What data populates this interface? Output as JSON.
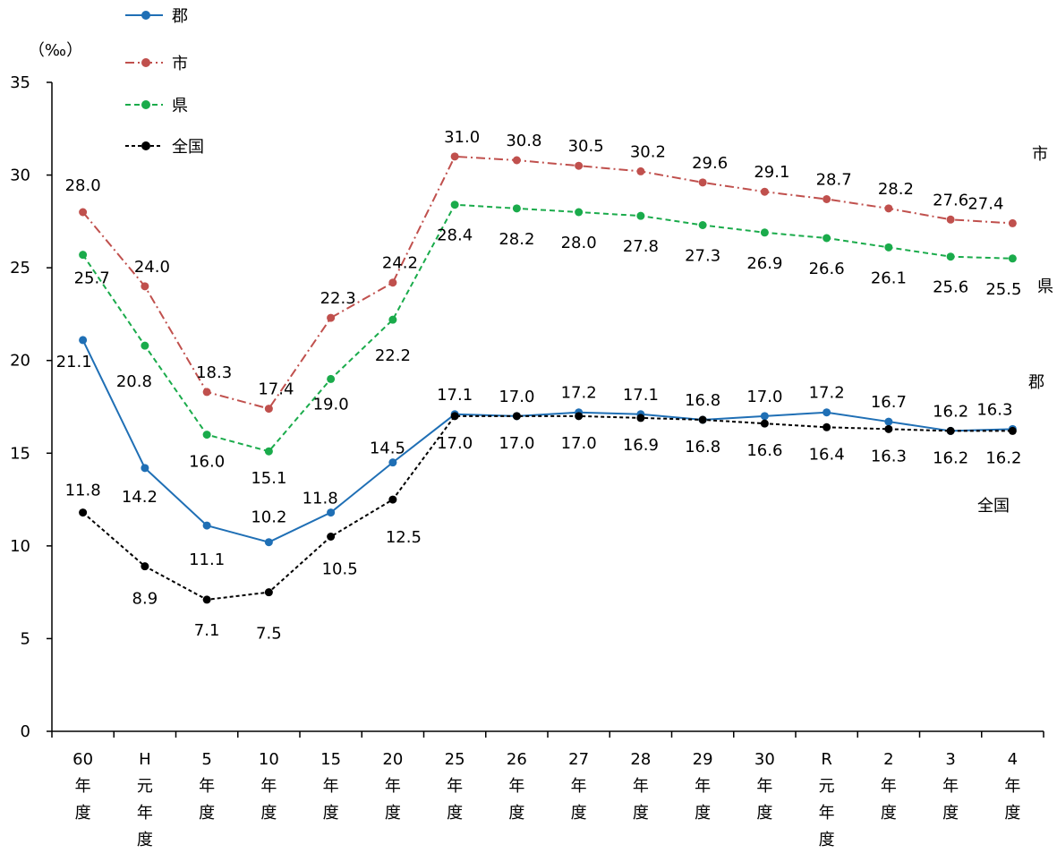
{
  "chart_data": {
    "type": "line",
    "unit_label": "（‰）",
    "ylim": [
      0,
      35
    ],
    "yticks": [
      0,
      5,
      10,
      15,
      20,
      25,
      30,
      35
    ],
    "grid": false,
    "legend_position": "top-left",
    "categories": [
      [
        "60",
        "年",
        "度"
      ],
      [
        "H",
        "元",
        "年",
        "度"
      ],
      [
        "5",
        "年",
        "度"
      ],
      [
        "10",
        "年",
        "度"
      ],
      [
        "15",
        "年",
        "度"
      ],
      [
        "20",
        "年",
        "度"
      ],
      [
        "25",
        "年",
        "度"
      ],
      [
        "26",
        "年",
        "度"
      ],
      [
        "27",
        "年",
        "度"
      ],
      [
        "28",
        "年",
        "度"
      ],
      [
        "29",
        "年",
        "度"
      ],
      [
        "30",
        "年",
        "度"
      ],
      [
        "R",
        "元",
        "年",
        "度"
      ],
      [
        "2",
        "年",
        "度"
      ],
      [
        "3",
        "年",
        "度"
      ],
      [
        "4",
        "年",
        "度"
      ]
    ],
    "series": [
      {
        "name": "郡",
        "color": "#1f6fb5",
        "style": "solid",
        "values": [
          21.1,
          14.2,
          11.1,
          10.2,
          11.8,
          14.5,
          17.1,
          17.0,
          17.2,
          17.1,
          16.8,
          17.0,
          17.2,
          16.7,
          16.2,
          16.3
        ],
        "labels": [
          "21.1",
          "14.2",
          "11.1",
          "10.2",
          "11.8",
          "14.5",
          "17.1",
          "17.0",
          "17.2",
          "17.1",
          "16.8",
          "17.0",
          "17.2",
          "16.7",
          "16.2",
          "16.3"
        ]
      },
      {
        "name": "市",
        "color": "#c0504d",
        "style": "dashdot",
        "values": [
          28.0,
          24.0,
          18.3,
          17.4,
          22.3,
          24.2,
          31.0,
          30.8,
          30.5,
          30.2,
          29.6,
          29.1,
          28.7,
          28.2,
          27.6,
          27.4
        ],
        "labels": [
          "28.0",
          "24.0",
          "18.3",
          "17.4",
          "22.3",
          "24.2",
          "31.0",
          "30.8",
          "30.5",
          "30.2",
          "29.6",
          "29.1",
          "28.7",
          "28.2",
          "27.6",
          "27.4"
        ]
      },
      {
        "name": "県",
        "color": "#1aab4b",
        "style": "dashed",
        "values": [
          25.7,
          20.8,
          16.0,
          15.1,
          19.0,
          22.2,
          28.4,
          28.2,
          28.0,
          27.8,
          27.3,
          26.9,
          26.6,
          26.1,
          25.6,
          25.5
        ],
        "labels": [
          "25.7",
          "20.8",
          "16.0",
          "15.1",
          "19.0",
          "22.2",
          "28.4",
          "28.2",
          "28.0",
          "27.8",
          "27.3",
          "26.9",
          "26.6",
          "26.1",
          "25.6",
          "25.5"
        ]
      },
      {
        "name": "全国",
        "color": "#000000",
        "style": "dotted",
        "values": [
          11.8,
          8.9,
          7.1,
          7.5,
          10.5,
          12.5,
          17.0,
          17.0,
          17.0,
          16.9,
          16.8,
          16.6,
          16.4,
          16.3,
          16.2,
          16.2
        ],
        "labels": [
          "11.8",
          "8.9",
          "7.1",
          "7.5",
          "10.5",
          "12.5",
          "17.0",
          "17.0",
          "17.0",
          "16.9",
          "16.8",
          "16.6",
          "16.4",
          "16.3",
          "16.2",
          "16.2"
        ]
      }
    ],
    "end_tags": [
      "市",
      "県",
      "郡",
      "全国"
    ]
  }
}
